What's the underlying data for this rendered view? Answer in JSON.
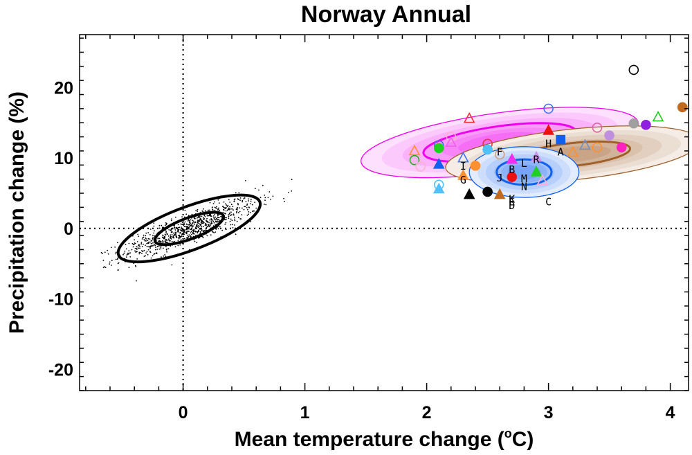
{
  "chart_data": {
    "type": "scatter",
    "title": "Norway Annual",
    "xlabel_main": "Mean temperature change (",
    "xlabel_sup": "o",
    "xlabel_end": "C)",
    "ylabel": "Precipitation change (%)",
    "xlim": [
      -0.85,
      4.15
    ],
    "ylim": [
      -23,
      27.5
    ],
    "x_ticks": [
      0,
      1,
      2,
      3,
      4
    ],
    "y_ticks": [
      -20,
      -10,
      0,
      10,
      20
    ],
    "x_tick_labels": [
      "0",
      "1",
      "2",
      "3",
      "4"
    ],
    "y_tick_labels": [
      "-20",
      "-10",
      "0",
      "10",
      "20"
    ],
    "reference_lines": {
      "x": 0,
      "y": 0,
      "style": "dotted"
    },
    "natural_variability": {
      "center": [
        0.05,
        0.0
      ],
      "slope_pct_per_degC": 6.5,
      "contour_half_widths_degC": [
        0.28,
        0.58
      ],
      "minor_half_width_pct": 1.6,
      "scatter_spread_degC": 0.28,
      "scatter_noise_pct": 1.1
    },
    "model_distributions": [
      {
        "name": "magenta",
        "color": "#ee00ee",
        "center": [
          2.6,
          12.2
        ],
        "half_axes": [
          1.15,
          4.2
        ],
        "rotation_deg": 8,
        "core_scale": 0.55
      },
      {
        "name": "brown",
        "color": "#a0602a",
        "center": [
          3.2,
          10.5
        ],
        "half_axes": [
          1.05,
          3.6
        ],
        "rotation_deg": 6,
        "core_scale": 0.45
      },
      {
        "name": "blue",
        "color": "#1060f0",
        "center": [
          2.8,
          8.0
        ],
        "half_axes": [
          0.45,
          3.6
        ],
        "rotation_deg": 0,
        "core_scale": 0.5
      }
    ],
    "model_markers": [
      {
        "x": 3.7,
        "y": 22.5,
        "shape": "circle",
        "filled": false,
        "color": "#000000"
      },
      {
        "x": 4.1,
        "y": 17.2,
        "shape": "circle",
        "filled": true,
        "color": "#c06a20"
      },
      {
        "x": 3.0,
        "y": 17.0,
        "shape": "circle",
        "filled": false,
        "color": "#4070ff"
      },
      {
        "x": 2.35,
        "y": 15.6,
        "shape": "triangle",
        "filled": false,
        "color": "#ee3030"
      },
      {
        "x": 3.9,
        "y": 15.8,
        "shape": "triangle",
        "filled": false,
        "color": "#20cc20"
      },
      {
        "x": 3.7,
        "y": 14.9,
        "shape": "circle",
        "filled": true,
        "color": "#a0a0a0"
      },
      {
        "x": 3.8,
        "y": 14.7,
        "shape": "circle",
        "filled": true,
        "color": "#9020e0"
      },
      {
        "x": 3.4,
        "y": 14.3,
        "shape": "circle",
        "filled": false,
        "color": "#e060a0"
      },
      {
        "x": 3.5,
        "y": 13.2,
        "shape": "circle",
        "filled": true,
        "color": "#c090e0"
      },
      {
        "x": 3.0,
        "y": 13.9,
        "shape": "triangle",
        "filled": true,
        "color": "#ee1010"
      },
      {
        "x": 3.1,
        "y": 12.6,
        "shape": "square",
        "filled": true,
        "color": "#1060f0"
      },
      {
        "x": 3.3,
        "y": 11.8,
        "shape": "triangle",
        "filled": false,
        "color": "#7090c0"
      },
      {
        "x": 3.4,
        "y": 11.5,
        "shape": "circle",
        "filled": false,
        "color": "#ff9030"
      },
      {
        "x": 3.6,
        "y": 11.5,
        "shape": "circle",
        "filled": true,
        "color": "#ff20c0"
      },
      {
        "x": 2.2,
        "y": 13.0,
        "shape": "circle",
        "filled": false,
        "color": "#ffb0d0"
      },
      {
        "x": 2.2,
        "y": 12.2,
        "shape": "triangle",
        "filled": false,
        "color": "#ee60ee"
      },
      {
        "x": 2.1,
        "y": 11.8,
        "shape": "circle",
        "filled": false,
        "color": "#4070ff"
      },
      {
        "x": 2.1,
        "y": 11.4,
        "shape": "circle",
        "filled": true,
        "color": "#20d020"
      },
      {
        "x": 1.9,
        "y": 11.0,
        "shape": "triangle",
        "filled": false,
        "color": "#ff9030"
      },
      {
        "x": 1.9,
        "y": 9.7,
        "shape": "circle",
        "filled": false,
        "color": "#20b020"
      },
      {
        "x": 1.95,
        "y": 8.8,
        "shape": "circle",
        "filled": false,
        "color": "#ffb0d0"
      },
      {
        "x": 2.5,
        "y": 12.0,
        "shape": "circle",
        "filled": false,
        "color": "#ee3030"
      },
      {
        "x": 2.5,
        "y": 11.2,
        "shape": "circle",
        "filled": true,
        "color": "#50c0ff"
      },
      {
        "x": 2.3,
        "y": 10.0,
        "shape": "triangle",
        "filled": false,
        "color": "#4070ff"
      },
      {
        "x": 2.1,
        "y": 9.1,
        "shape": "triangle",
        "filled": true,
        "color": "#1060f0"
      },
      {
        "x": 2.4,
        "y": 8.9,
        "shape": "circle",
        "filled": true,
        "color": "#ff9030"
      },
      {
        "x": 2.3,
        "y": 7.5,
        "shape": "triangle",
        "filled": true,
        "color": "#ff9030"
      },
      {
        "x": 2.1,
        "y": 6.2,
        "shape": "circle",
        "filled": false,
        "color": "#50c0ff"
      },
      {
        "x": 2.1,
        "y": 5.6,
        "shape": "triangle",
        "filled": true,
        "color": "#50c0ff"
      },
      {
        "x": 2.35,
        "y": 4.8,
        "shape": "triangle",
        "filled": true,
        "color": "#000000"
      },
      {
        "x": 2.5,
        "y": 5.2,
        "shape": "circle",
        "filled": true,
        "color": "#000000"
      },
      {
        "x": 2.6,
        "y": 4.8,
        "shape": "triangle",
        "filled": true,
        "color": "#c06a20"
      },
      {
        "x": 2.7,
        "y": 9.8,
        "shape": "triangle",
        "filled": true,
        "color": "#ee30ee"
      },
      {
        "x": 2.7,
        "y": 7.3,
        "shape": "circle",
        "filled": true,
        "color": "#ee1010"
      },
      {
        "x": 2.9,
        "y": 8.0,
        "shape": "triangle",
        "filled": true,
        "color": "#20d020"
      },
      {
        "x": 2.9,
        "y": 10.1,
        "shape": "triangle",
        "filled": true,
        "color": "#d090f0"
      },
      {
        "x": 2.95,
        "y": 6.8,
        "shape": "triangle",
        "filled": false,
        "color": "#ffb0d0"
      },
      {
        "x": 2.6,
        "y": 10.5,
        "shape": "circle",
        "filled": false,
        "color": "#d0a080"
      },
      {
        "x": 3.2,
        "y": 10.8,
        "shape": "triangle",
        "filled": false,
        "color": "#ff9030"
      }
    ],
    "model_letters": [
      {
        "label": "A",
        "x": 3.1,
        "y": 10.8
      },
      {
        "label": "B",
        "x": 2.7,
        "y": 8.3
      },
      {
        "label": "C",
        "x": 3.0,
        "y": 3.7
      },
      {
        "label": "D",
        "x": 2.7,
        "y": 3.2
      },
      {
        "label": "E",
        "x": 2.7,
        "y": 3.7
      },
      {
        "label": "F",
        "x": 2.6,
        "y": 10.8
      },
      {
        "label": "G",
        "x": 2.3,
        "y": 6.8
      },
      {
        "label": "H",
        "x": 3.0,
        "y": 12.0
      },
      {
        "label": "I",
        "x": 2.3,
        "y": 8.8
      },
      {
        "label": "J",
        "x": 2.6,
        "y": 7.1
      },
      {
        "label": "K",
        "x": 2.7,
        "y": 4.1
      },
      {
        "label": "L",
        "x": 2.8,
        "y": 9.2
      },
      {
        "label": "M",
        "x": 2.8,
        "y": 7.0
      },
      {
        "label": "N",
        "x": 2.8,
        "y": 5.9
      },
      {
        "label": "R",
        "x": 2.9,
        "y": 9.7
      }
    ]
  }
}
